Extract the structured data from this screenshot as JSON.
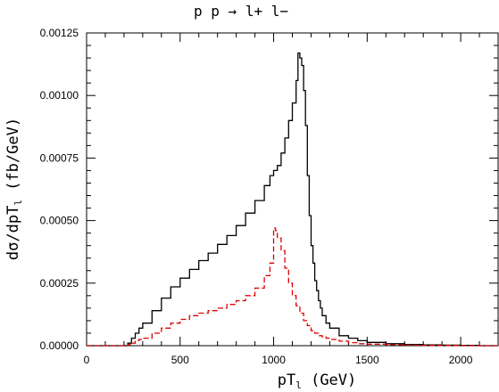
{
  "chart_data": {
    "type": "line",
    "title": "p p → l+ l−",
    "xlabel": "pT",
    "xlabel_sub": "l",
    "xlabel_unit": " (GeV)",
    "ylabel": "dσ/dpT",
    "ylabel_sub": "l",
    "ylabel_unit": " (fb/GeV)",
    "xlim": [
      0,
      2200
    ],
    "ylim": [
      0,
      0.00125
    ],
    "xticks": [
      0,
      500,
      1000,
      1500,
      2000
    ],
    "xtick_labels": [
      "0",
      "500",
      "1000",
      "1500",
      "2000"
    ],
    "yticks": [
      0,
      0.00025,
      0.0005,
      0.00075,
      0.001,
      0.00125
    ],
    "ytick_labels": [
      "0.00000",
      "0.00025",
      "0.00050",
      "0.00075",
      "0.00100",
      "0.00125"
    ],
    "grid": false,
    "legend": false,
    "series": [
      {
        "style": "solid",
        "color": "#000000",
        "x": [
          0,
          100,
          150,
          200,
          220,
          240,
          260,
          280,
          300,
          350,
          400,
          450,
          500,
          550,
          600,
          650,
          700,
          750,
          800,
          850,
          900,
          950,
          980,
          1000,
          1020,
          1040,
          1060,
          1080,
          1100,
          1120,
          1130,
          1140,
          1150,
          1160,
          1170,
          1180,
          1190,
          1200,
          1210,
          1220,
          1230,
          1240,
          1250,
          1260,
          1280,
          1300,
          1350,
          1400,
          1450,
          1500,
          1600,
          1700,
          1800,
          1900,
          2000,
          2100,
          2200
        ],
        "y": [
          0,
          0,
          0,
          0,
          1e-05,
          3e-05,
          5e-05,
          7e-05,
          9e-05,
          0.00014,
          0.00019,
          0.000235,
          0.00027,
          0.000305,
          0.00034,
          0.00037,
          0.000405,
          0.00044,
          0.00048,
          0.00053,
          0.00058,
          0.00064,
          0.00068,
          0.0007,
          0.00072,
          0.00077,
          0.00083,
          0.0009,
          0.00097,
          0.00106,
          0.00117,
          0.00115,
          0.00112,
          0.00102,
          0.00088,
          0.00068,
          0.00052,
          0.0004,
          0.00033,
          0.00026,
          0.00022,
          0.00018,
          0.00015,
          0.00012,
          9e-05,
          7e-05,
          4e-05,
          3e-05,
          2e-05,
          1.3e-05,
          8e-06,
          5e-06,
          3e-06,
          2e-06,
          1e-06,
          0,
          0
        ]
      },
      {
        "style": "dashed",
        "color": "#dd0000",
        "x": [
          0,
          100,
          150,
          200,
          220,
          240,
          260,
          280,
          300,
          350,
          400,
          450,
          500,
          550,
          600,
          650,
          700,
          750,
          800,
          850,
          900,
          950,
          980,
          1000,
          1010,
          1020,
          1040,
          1060,
          1080,
          1100,
          1120,
          1140,
          1160,
          1180,
          1200,
          1220,
          1240,
          1260,
          1280,
          1300,
          1350,
          1400,
          1450,
          1500,
          1600,
          1700,
          1800,
          1900,
          2000,
          2100,
          2200
        ],
        "y": [
          0,
          0,
          0,
          0,
          5e-06,
          1e-05,
          2e-05,
          2.5e-05,
          3e-05,
          5e-05,
          7e-05,
          9e-05,
          0.000105,
          0.00012,
          0.00013,
          0.00014,
          0.00015,
          0.000165,
          0.00018,
          0.0002,
          0.00023,
          0.00028,
          0.00033,
          0.00047,
          0.00046,
          0.00043,
          0.00038,
          0.00031,
          0.00025,
          0.0002,
          0.00016,
          0.00013,
          0.0001,
          8e-05,
          6e-05,
          5e-05,
          4e-05,
          3.5e-05,
          3e-05,
          2.5e-05,
          1.8e-05,
          1.2e-05,
          8e-06,
          6e-06,
          4e-06,
          2e-06,
          1e-06,
          1e-06,
          0,
          0,
          0
        ]
      }
    ]
  }
}
